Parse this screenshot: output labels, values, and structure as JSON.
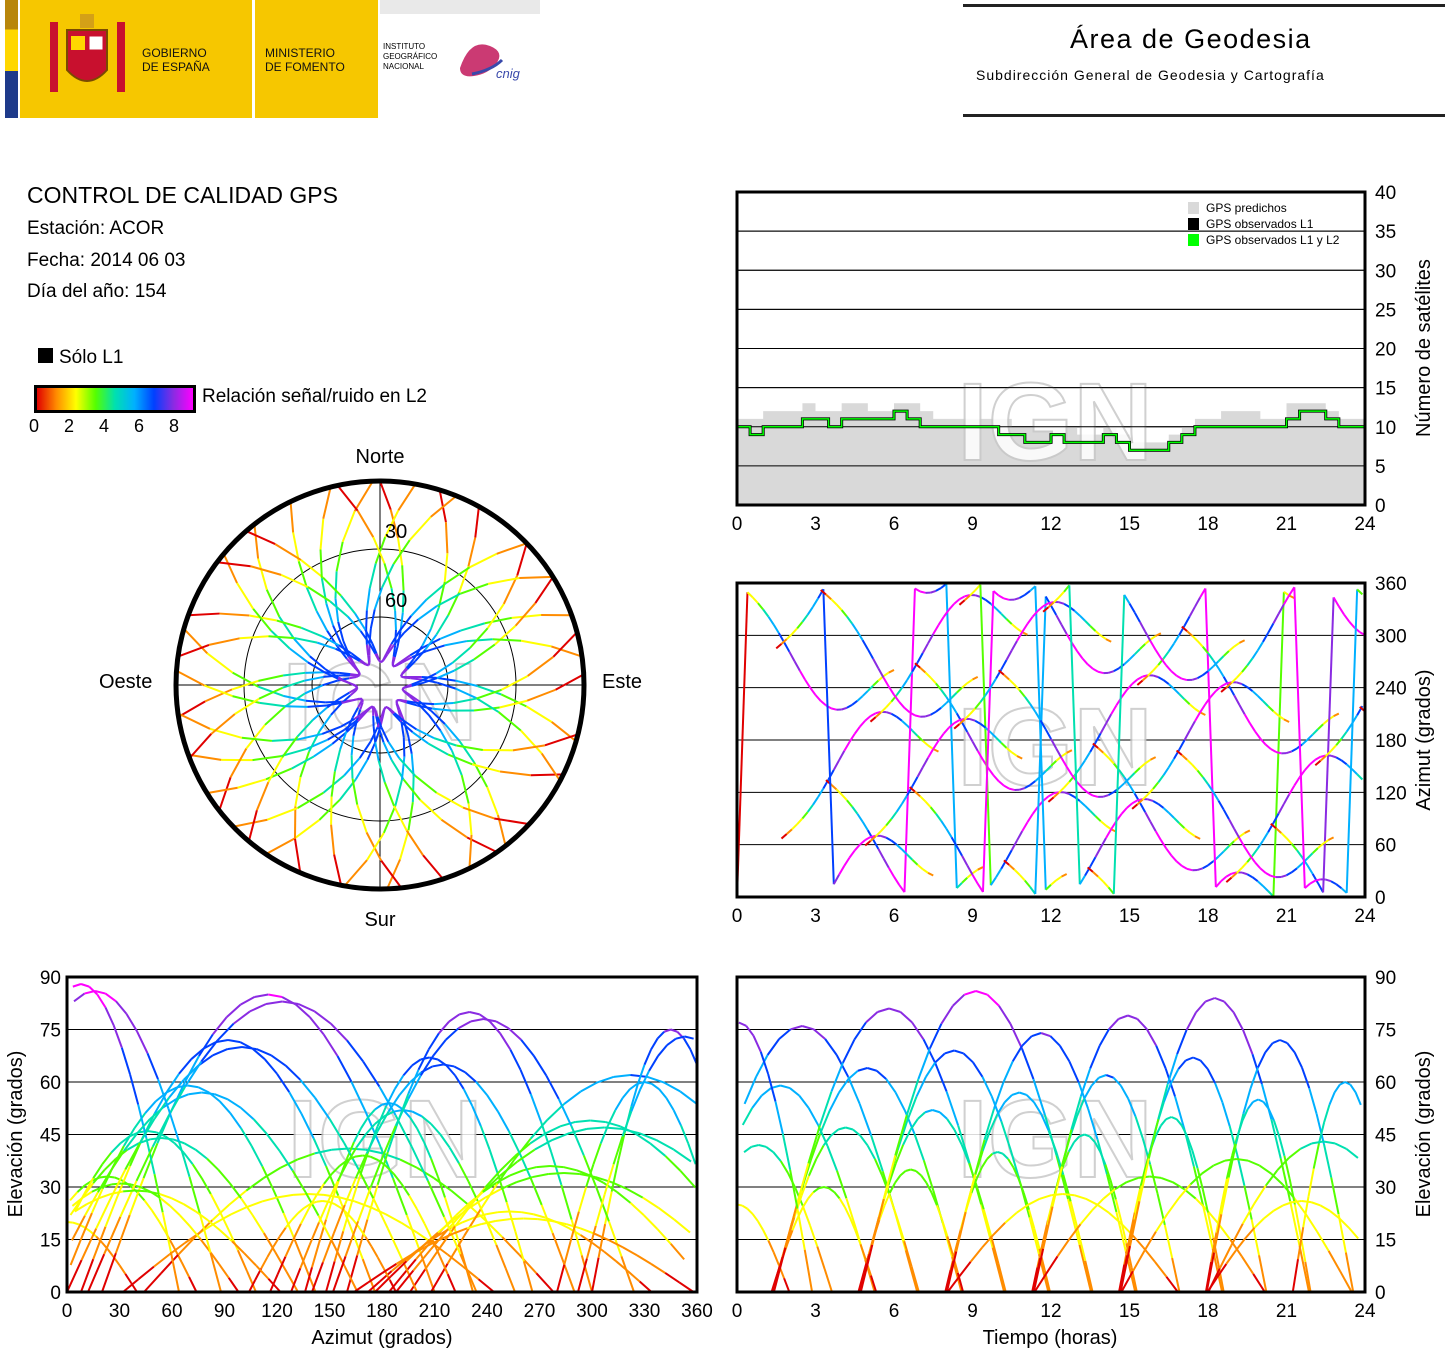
{
  "header": {
    "gobierno": [
      "GOBIERNO",
      "DE ESPAÑA"
    ],
    "ministerio": [
      "MINISTERIO",
      "DE FOMENTO"
    ],
    "instituto": [
      "INSTITUTO",
      "GEOGRÁFICO",
      "NACIONAL"
    ],
    "cnig": "cnig",
    "area_title": "Área de Geodesia",
    "area_subtitle": "Subdirección General de Geodesia y Cartografía"
  },
  "info": {
    "title": "CONTROL DE CALIDAD GPS",
    "station": "Estación: ACOR",
    "date": "Fecha: 2014 06 03",
    "doy": "Día del año: 154",
    "solo_l1": "Sólo L1",
    "snr_label": "Relación señal/ruido en L2",
    "snr_ticks": [
      "0",
      "2",
      "4",
      "6",
      "8"
    ]
  },
  "watermark": "IGN",
  "colors": {
    "snr_scale": [
      "#e00000",
      "#ff8c00",
      "#ffff00",
      "#55ff00",
      "#00e0b0",
      "#00b0ff",
      "#0040ff",
      "#8a2be2",
      "#ff00ff"
    ],
    "predicted": "#d9d9d9",
    "observed_l1": "#000000",
    "observed_l1l2": "#00ff00"
  },
  "chart_data": [
    {
      "id": "skyplot",
      "type": "scatter",
      "projection": "polar",
      "directions": {
        "north": "Norte",
        "south": "Sur",
        "east": "Este",
        "west": "Oeste"
      },
      "ring_labels": [
        "30",
        "60"
      ],
      "note": "Satellite tracks colored by L2 SNR"
    },
    {
      "id": "sat-count",
      "type": "area",
      "x": [
        0,
        0.5,
        1,
        1.5,
        2,
        2.5,
        3,
        3.5,
        4,
        4.5,
        5,
        5.5,
        6,
        6.5,
        7,
        7.5,
        8,
        8.5,
        9,
        9.5,
        10,
        10.5,
        11,
        11.5,
        12,
        12.5,
        13,
        13.5,
        14,
        14.5,
        15,
        15.5,
        16,
        16.5,
        17,
        17.5,
        18,
        18.5,
        19,
        19.5,
        20,
        20.5,
        21,
        21.5,
        22,
        22.5,
        23,
        23.5,
        24
      ],
      "series": [
        {
          "name": "GPS predichos",
          "values": [
            11,
            11,
            12,
            12,
            12,
            13,
            12,
            12,
            13,
            13,
            12,
            12,
            13,
            13,
            12,
            11,
            11,
            11,
            11,
            11,
            11,
            10,
            10,
            10,
            10,
            10,
            9,
            9,
            10,
            9,
            8,
            8,
            8,
            9,
            10,
            11,
            11,
            12,
            12,
            12,
            11,
            11,
            13,
            13,
            13,
            12,
            11,
            11,
            11
          ]
        },
        {
          "name": "GPS observados L1",
          "values": [
            10,
            9,
            10,
            10,
            10,
            11,
            11,
            10,
            11,
            11,
            11,
            11,
            12,
            11,
            10,
            10,
            10,
            10,
            10,
            10,
            9,
            9,
            8,
            8,
            9,
            8,
            8,
            8,
            9,
            8,
            7,
            7,
            7,
            8,
            9,
            10,
            10,
            10,
            10,
            10,
            10,
            10,
            11,
            12,
            12,
            11,
            10,
            10,
            10
          ]
        },
        {
          "name": "GPS observados L1 y L2",
          "values": [
            10,
            9,
            10,
            10,
            10,
            11,
            11,
            10,
            11,
            11,
            11,
            11,
            12,
            11,
            10,
            10,
            10,
            10,
            10,
            10,
            9,
            9,
            8,
            8,
            9,
            8,
            8,
            8,
            9,
            8,
            7,
            7,
            7,
            8,
            9,
            10,
            10,
            10,
            10,
            10,
            10,
            10,
            11,
            12,
            12,
            11,
            10,
            10,
            10
          ]
        }
      ],
      "xticks": [
        "0",
        "3",
        "6",
        "9",
        "12",
        "15",
        "18",
        "21",
        "24"
      ],
      "yticks": [
        "0",
        "5",
        "10",
        "15",
        "20",
        "25",
        "30",
        "35",
        "40"
      ],
      "ylabel": "Número de satélites",
      "xlim": [
        0,
        24
      ],
      "ylim": [
        0,
        40
      ]
    },
    {
      "id": "azimuth-time",
      "type": "scatter",
      "xticks": [
        "0",
        "3",
        "6",
        "9",
        "12",
        "15",
        "18",
        "21",
        "24"
      ],
      "yticks": [
        "0",
        "60",
        "120",
        "180",
        "240",
        "300",
        "360"
      ],
      "ylabel": "Azimut (grados)",
      "xlim": [
        0,
        24
      ],
      "ylim": [
        0,
        360
      ]
    },
    {
      "id": "elevation-azimuth",
      "type": "scatter",
      "xticks": [
        "0",
        "30",
        "60",
        "90",
        "120",
        "150",
        "180",
        "210",
        "240",
        "270",
        "300",
        "330",
        "360"
      ],
      "yticks": [
        "0",
        "15",
        "30",
        "45",
        "60",
        "75",
        "90"
      ],
      "xlabel": "Azimut (grados)",
      "ylabel": "Elevación (grados)",
      "xlim": [
        0,
        360
      ],
      "ylim": [
        0,
        90
      ]
    },
    {
      "id": "elevation-time",
      "type": "scatter",
      "xticks": [
        "0",
        "3",
        "6",
        "9",
        "12",
        "15",
        "18",
        "21",
        "24"
      ],
      "yticks": [
        "0",
        "15",
        "30",
        "45",
        "60",
        "75",
        "90"
      ],
      "xlabel": "Tiempo (horas)",
      "ylabel": "Elevación (grados)",
      "xlim": [
        0,
        24
      ],
      "ylim": [
        0,
        90
      ]
    }
  ]
}
